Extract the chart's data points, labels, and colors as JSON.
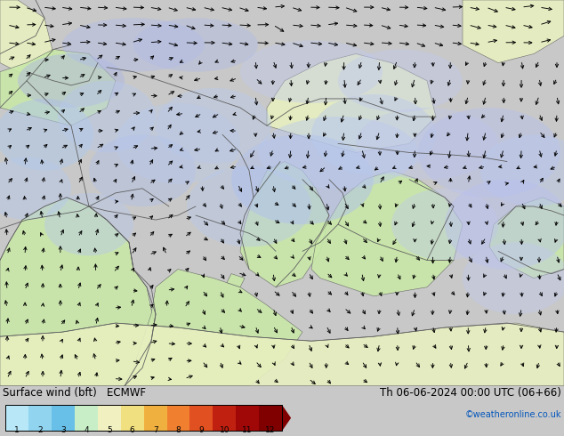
{
  "title_left": "Surface wind (bft)   ECMWF",
  "title_right": "Th 06-06-2024 00:00 UTC (06+66)",
  "credit": "©weatheronline.co.uk",
  "colorbar_levels": [
    1,
    2,
    3,
    4,
    5,
    6,
    7,
    8,
    9,
    10,
    11,
    12
  ],
  "colorbar_colors": [
    "#b8e8f8",
    "#90d4f0",
    "#68c0e8",
    "#c8eec8",
    "#f0f0c0",
    "#f0e080",
    "#f0b040",
    "#f08030",
    "#e05020",
    "#c02010",
    "#a00808",
    "#800000"
  ],
  "sea_color": "#8ad8ec",
  "land_color": "#c8e8a8",
  "land_color2": "#e8f0c0",
  "wind_low_color": "#c0d8f8",
  "wind_med_color": "#b0c8f0",
  "wind_high_color": "#b8b8e0",
  "border_color": "#606060",
  "bottom_bar_color": "#c8c8c8",
  "fig_width": 6.34,
  "fig_height": 4.9,
  "dpi": 100
}
